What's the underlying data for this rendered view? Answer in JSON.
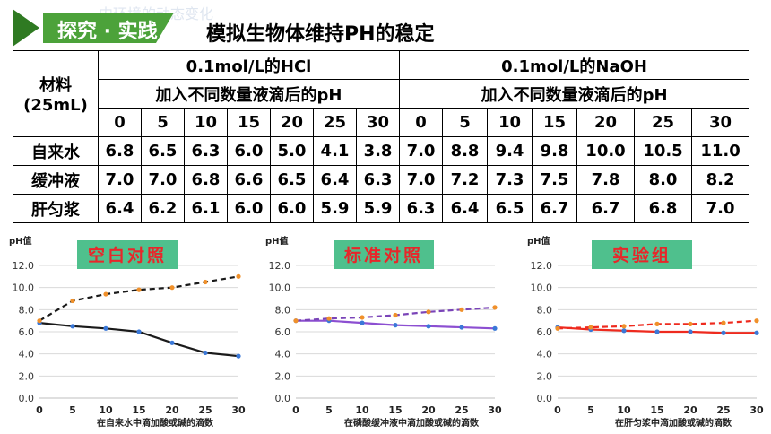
{
  "header": {
    "tag": "探究 · 实践",
    "title": "模拟生物体维持PH的稳定",
    "faint_text": "内环境的动态变化",
    "colors": {
      "tag_green": "#4ca23a",
      "tag_green_dark": "#2f7a22"
    }
  },
  "table": {
    "material_label_line1": "材料",
    "material_label_line2": "(25mL)",
    "hcl_header": "0.1mol/L的HCl",
    "naoh_header": "0.1mol/L的NaOH",
    "hcl_subheader": "加入不同数量液滴后的pH",
    "naoh_subheader": "加入不同数量液滴后的pH",
    "drops": [
      "0",
      "5",
      "10",
      "15",
      "20",
      "25",
      "30"
    ],
    "rows": [
      {
        "name": "自来水",
        "hcl": [
          "6.8",
          "6.5",
          "6.3",
          "6.0",
          "5.0",
          "4.1",
          "3.8"
        ],
        "naoh": [
          "7.0",
          "8.8",
          "9.4",
          "9.8",
          "10.0",
          "10.5",
          "11.0"
        ]
      },
      {
        "name": "缓冲液",
        "hcl": [
          "7.0",
          "7.0",
          "6.8",
          "6.6",
          "6.5",
          "6.4",
          "6.3"
        ],
        "naoh": [
          "7.0",
          "7.2",
          "7.3",
          "7.5",
          "7.8",
          "8.0",
          "8.2"
        ]
      },
      {
        "name": "肝匀浆",
        "hcl": [
          "6.4",
          "6.2",
          "6.1",
          "6.0",
          "6.0",
          "5.9",
          "5.9"
        ],
        "naoh": [
          "6.3",
          "6.4",
          "6.5",
          "6.7",
          "6.7",
          "6.8",
          "7.0"
        ]
      }
    ]
  },
  "chart_data": [
    {
      "type": "line",
      "title": "空白对照",
      "ylabel": "pH值",
      "xlabel": "在自来水中滴加酸或碱的滴数",
      "x": [
        0,
        5,
        10,
        15,
        20,
        25,
        30
      ],
      "ylim": [
        0,
        12
      ],
      "yticks": [
        "0.0",
        "2.0",
        "4.0",
        "6.0",
        "8.0",
        "10.0",
        "12.0"
      ],
      "grid": true,
      "series": [
        {
          "values": [
            6.8,
            6.5,
            6.3,
            6.0,
            5.0,
            4.1,
            3.8
          ],
          "color": "#1a1a1a",
          "dashed": false
        },
        {
          "values": [
            7.0,
            8.8,
            9.4,
            9.8,
            10.0,
            10.5,
            11.0
          ],
          "color": "#1a1a1a",
          "dashed": true
        }
      ]
    },
    {
      "type": "line",
      "title": "标准对照",
      "ylabel": "pH值",
      "xlabel": "在磷酸缓冲液中滴加酸或碱的滴数",
      "x": [
        0,
        5,
        10,
        15,
        20,
        25,
        30
      ],
      "ylim": [
        0,
        12
      ],
      "yticks": [
        "0.0",
        "2.0",
        "4.0",
        "6.0",
        "8.0",
        "10.0",
        "12.0"
      ],
      "grid": true,
      "series": [
        {
          "values": [
            7.0,
            7.0,
            6.8,
            6.6,
            6.5,
            6.4,
            6.3
          ],
          "color": "#8c4fd1",
          "dashed": false
        },
        {
          "values": [
            7.0,
            7.2,
            7.3,
            7.5,
            7.8,
            8.0,
            8.2
          ],
          "color": "#7a44b8",
          "dashed": true
        }
      ]
    },
    {
      "type": "line",
      "title": "实验组",
      "ylabel": "pH值",
      "xlabel": "在肝匀浆中滴加酸或碱的滴数",
      "x": [
        0,
        5,
        10,
        15,
        20,
        25,
        30
      ],
      "ylim": [
        0,
        12
      ],
      "yticks": [
        "0.0",
        "2.0",
        "4.0",
        "6.0",
        "8.0",
        "10.0",
        "12.0"
      ],
      "grid": true,
      "series": [
        {
          "values": [
            6.4,
            6.2,
            6.1,
            6.0,
            6.0,
            5.9,
            5.9
          ],
          "color": "#ee2a1e",
          "dashed": false
        },
        {
          "values": [
            6.3,
            6.4,
            6.5,
            6.7,
            6.7,
            6.8,
            7.0
          ],
          "color": "#ee2a1e",
          "dashed": true
        }
      ]
    }
  ],
  "chart_style": {
    "title_bg": "#4fc08d",
    "title_color": "#e8262a",
    "marker_color": "#f0902a",
    "marker_color_blue": "#3a78d8",
    "grid_color": "#d9d9d9",
    "axis_color": "#bfbfbf"
  }
}
